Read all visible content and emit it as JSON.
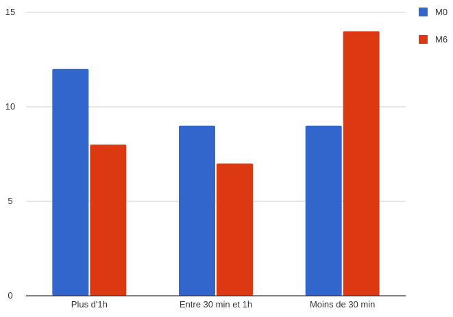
{
  "chart_data": {
    "type": "bar",
    "categories": [
      "Plus d'1h",
      "Entre 30 min et 1h",
      "Moins de 30 min"
    ],
    "series": [
      {
        "name": "M0",
        "values": [
          12,
          9,
          9
        ],
        "color": "#3366cc"
      },
      {
        "name": "M6",
        "values": [
          8,
          7,
          14
        ],
        "color": "#dc3912"
      }
    ],
    "title": "",
    "xlabel": "",
    "ylabel": "",
    "ylim": [
      0,
      15
    ],
    "yticks": [
      "0",
      "5",
      "10",
      "15"
    ],
    "grid": true,
    "legend_position": "right"
  }
}
